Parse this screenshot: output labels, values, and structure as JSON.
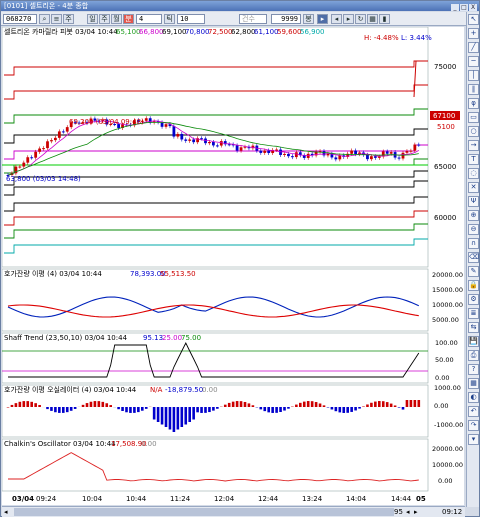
{
  "window": {
    "title": "[0101] 셀트리온 - 4분 종합",
    "controls": [
      "_",
      "□",
      "X"
    ]
  },
  "toolbar": {
    "code": "068270",
    "type_label": "주",
    "day_label": "일",
    "week_label": "주",
    "month_label": "월",
    "minute_label": "분",
    "minute_value": "4",
    "tick_label": "틱",
    "tick_value": "10",
    "count_placeholder": "건수",
    "count_value": "9999",
    "count_unit": "봉"
  },
  "price_panel": {
    "header": "셀트리온 카마릴라 피봇 03/04 10:44",
    "header_values": [
      "65,100",
      "66,800",
      "69,100",
      "70,800",
      "72,500",
      "62,800",
      "61,100",
      "59,600",
      "56,900"
    ],
    "header_colors": [
      "#1f9d1f",
      "#cc00cc",
      "#000000",
      "#0000cc",
      "#cc0000",
      "#000000",
      "#0000cc",
      "#cc0000",
      "#00aaaa"
    ],
    "hi_text": "H: -4.48%",
    "lo_text": "L: 3.44%",
    "high_annot": "69,200 (03/04 09:48)",
    "low_annot": "63,800 (03/03 14:48)",
    "axis_labels": [
      "75000",
      "70000",
      "65000",
      "60000"
    ],
    "current_price": "67100",
    "current_price_b": "5100"
  },
  "indicator1": {
    "header": "호가잔량 이평 (4) 03/04 10:44",
    "value_a": "78,393.00",
    "value_b": "55,513.50",
    "axis_labels": [
      "20000.00",
      "15000.00",
      "10000.00",
      "5000.00"
    ]
  },
  "indicator2": {
    "header": "Shaff Trend (23,50,10) 03/04 10:44",
    "value_a": "95.13",
    "value_b": "25.00",
    "value_c": "75.00",
    "axis_labels": [
      "100.00",
      "50.00",
      "0.00"
    ]
  },
  "indicator3": {
    "header": "호가잔량 이평 오실레이터 (4) 03/04 10:44",
    "value_a": "N/A",
    "value_b": "-18,879.50",
    "value_c": "0.00",
    "axis_labels": [
      "1000.00",
      "0.00",
      "-1000.00"
    ]
  },
  "indicator4": {
    "header": "Chalkin's Oscillator 03/04 10:44",
    "value_a": "17,508.90",
    "value_b": "0.00",
    "axis_labels": [
      "20000.00",
      "10000.00",
      "0.00"
    ]
  },
  "time_axis": [
    "03/04",
    "09:24",
    "10:04",
    "10:44",
    "11:24",
    "12:04",
    "12:44",
    "13:24",
    "14:04",
    "14:44",
    "05"
  ],
  "bottom": {
    "zoom": "95",
    "time_readout": "09:12"
  },
  "colors": {
    "up": "#cc0000",
    "down": "#0000cc",
    "panel_bg": "#ffffff",
    "grid": "#c0c0c0"
  },
  "sidebar_icons": [
    "cursor-icon",
    "crosshair-icon",
    "line-icon",
    "hline-icon",
    "vline-icon",
    "channel-icon",
    "fib-icon",
    "rect-icon",
    "ellipse-icon",
    "arrow-icon",
    "text-icon",
    "cycle-icon",
    "gann-icon",
    "pitchfork-icon",
    "zoom-in-icon",
    "zoom-out-icon",
    "magnet-icon",
    "eraser-icon",
    "pen-icon",
    "lock-icon",
    "settings-icon",
    "layers-icon",
    "compare-icon",
    "save-icon",
    "print-icon",
    "help-icon",
    "grid-icon",
    "color-icon",
    "undo-icon",
    "redo-icon",
    "scroll-down-icon"
  ]
}
